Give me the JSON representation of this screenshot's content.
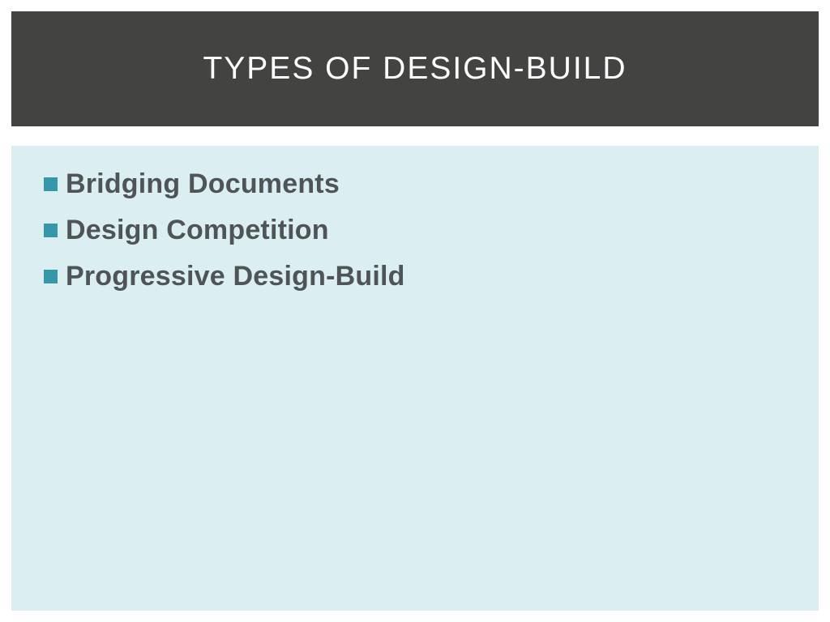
{
  "slide": {
    "title": "TYPES OF DESIGN-BUILD",
    "bullets": [
      {
        "text": "Bridging Documents"
      },
      {
        "text": "Design Competition"
      },
      {
        "text": "Progressive Design-Build"
      }
    ]
  },
  "styles": {
    "title_bg": "#434342",
    "title_color": "#ffffff",
    "title_fontsize": 39,
    "title_letterspacing": 2,
    "content_bg": "#dbeff2",
    "bullet_color": "#3597a8",
    "text_color": "#4f5456",
    "text_fontsize": 34,
    "text_fontweight": 700,
    "bullet_size": 17,
    "slide_width": 1024,
    "slide_height": 768
  }
}
